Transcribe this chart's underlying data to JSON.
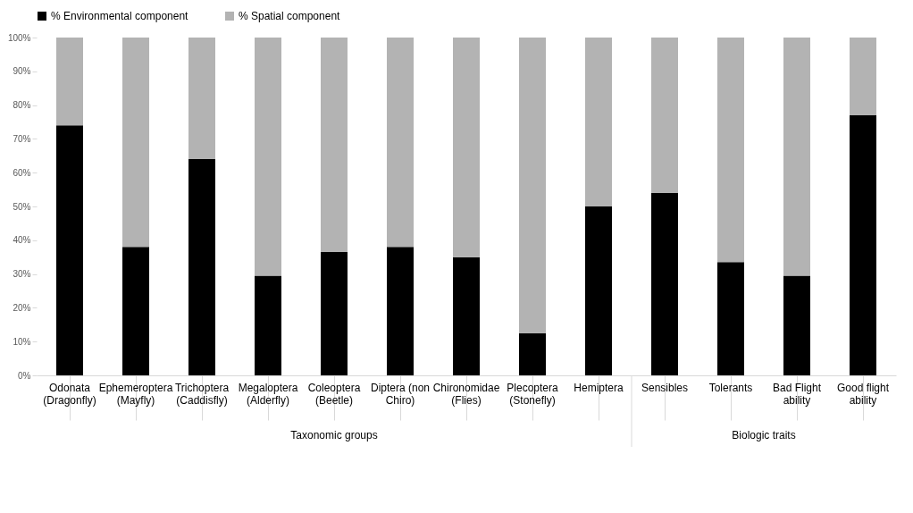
{
  "chart_data": {
    "type": "bar",
    "stacked": true,
    "categories": [
      "Odonata (Dragonfly)",
      "Ephemeroptera (Mayfly)",
      "Trichoptera (Caddisfly)",
      "Megaloptera (Alderfly)",
      "Coleoptera (Beetle)",
      "Diptera (non Chiro)",
      "Chironomidae (Flies)",
      "Plecoptera (Stonefly)",
      "Hemiptera",
      "Sensibles",
      "Tolerants",
      "Bad Flight ability",
      "Good flight ability"
    ],
    "series": [
      {
        "name": "% Environmental component",
        "color": "#000000",
        "values": [
          74,
          38,
          64,
          29.5,
          36.5,
          38,
          35,
          12.5,
          50,
          54,
          33.5,
          29.5,
          77
        ]
      },
      {
        "name": "% Spatial component",
        "color": "#b3b3b3",
        "values": [
          26,
          62,
          36,
          70.5,
          63.5,
          62,
          65,
          87.5,
          50,
          46,
          66.5,
          70.5,
          23
        ]
      }
    ],
    "ylim": [
      0,
      100
    ],
    "yticks": [
      {
        "value": 0,
        "label": "0%"
      },
      {
        "value": 10,
        "label": "10%"
      },
      {
        "value": 20,
        "label": "20%"
      },
      {
        "value": 30,
        "label": "30%"
      },
      {
        "value": 40,
        "label": "40%"
      },
      {
        "value": 50,
        "label": "50%"
      },
      {
        "value": 60,
        "label": "60%"
      },
      {
        "value": 70,
        "label": "70%"
      },
      {
        "value": 80,
        "label": "80%"
      },
      {
        "value": 90,
        "label": "90%"
      },
      {
        "value": 100,
        "label": "100%"
      }
    ],
    "legend": "top",
    "annotations": [
      "Taxonomic groups",
      "Biologic traits"
    ]
  }
}
